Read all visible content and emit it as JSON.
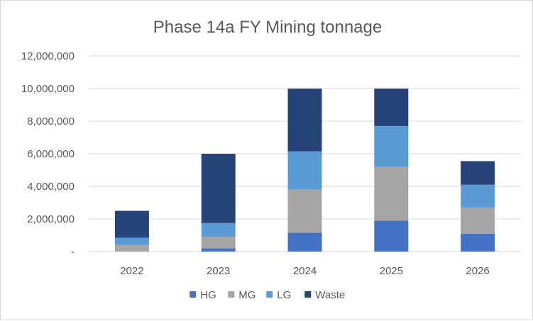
{
  "chart_data": {
    "type": "bar",
    "stacked": true,
    "title": "Phase 14a FY Mining tonnage",
    "xlabel": "",
    "ylabel": "",
    "categories": [
      "2022",
      "2023",
      "2024",
      "2025",
      "2026"
    ],
    "ylim": [
      0,
      12000000
    ],
    "yticks": [
      0,
      2000000,
      4000000,
      6000000,
      8000000,
      10000000,
      12000000
    ],
    "ytick_labels": [
      "-",
      "2,000,000",
      "4,000,000",
      "6,000,000",
      "8,000,000",
      "10,000,000",
      "12,000,000"
    ],
    "grid": true,
    "legend_position": "bottom",
    "series": [
      {
        "name": "HG",
        "color": "#4472c4",
        "values": [
          0,
          200000,
          1150000,
          1900000,
          1100000
        ]
      },
      {
        "name": "MG",
        "color": "#a5a5a5",
        "values": [
          400000,
          700000,
          2650000,
          3300000,
          1600000
        ]
      },
      {
        "name": "LG",
        "color": "#5b9bd5",
        "values": [
          450000,
          850000,
          2350000,
          2500000,
          1400000
        ]
      },
      {
        "name": "Waste",
        "color": "#264478",
        "values": [
          1650000,
          4250000,
          3850000,
          2300000,
          1450000
        ]
      }
    ]
  }
}
